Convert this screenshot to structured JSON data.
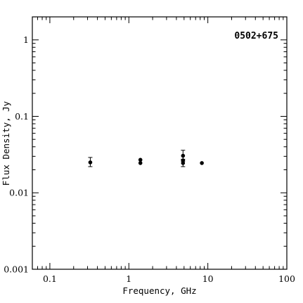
{
  "chart_data": {
    "type": "scatter",
    "title": "0502+675",
    "xlabel": "Frequency, GHz",
    "ylabel": "Flux Density, Jy",
    "xscale": "log",
    "yscale": "log",
    "xlim": [
      0.06,
      100
    ],
    "ylim": [
      0.001,
      2
    ],
    "grid": false,
    "x_ticks": [
      {
        "value": 0.1,
        "label": "0.1"
      },
      {
        "value": 1,
        "label": "1"
      },
      {
        "value": 10,
        "label": "10"
      },
      {
        "value": 100,
        "label": "100"
      }
    ],
    "y_ticks": [
      {
        "value": 0.001,
        "label": "0.001"
      },
      {
        "value": 0.01,
        "label": "0.01"
      },
      {
        "value": 0.1,
        "label": "0.1"
      },
      {
        "value": 1,
        "label": "1"
      }
    ],
    "points": [
      {
        "x": 0.325,
        "y": 0.025,
        "ylow": 0.022,
        "yhigh": 0.029
      },
      {
        "x": 1.4,
        "y": 0.0245
      },
      {
        "x": 1.4,
        "y": 0.027
      },
      {
        "x": 4.85,
        "y": 0.0305,
        "ylow": 0.026,
        "yhigh": 0.036
      },
      {
        "x": 4.85,
        "y": 0.0265
      },
      {
        "x": 4.85,
        "y": 0.0245,
        "ylow": 0.022,
        "yhigh": 0.0275
      },
      {
        "x": 8.4,
        "y": 0.0245
      }
    ]
  }
}
